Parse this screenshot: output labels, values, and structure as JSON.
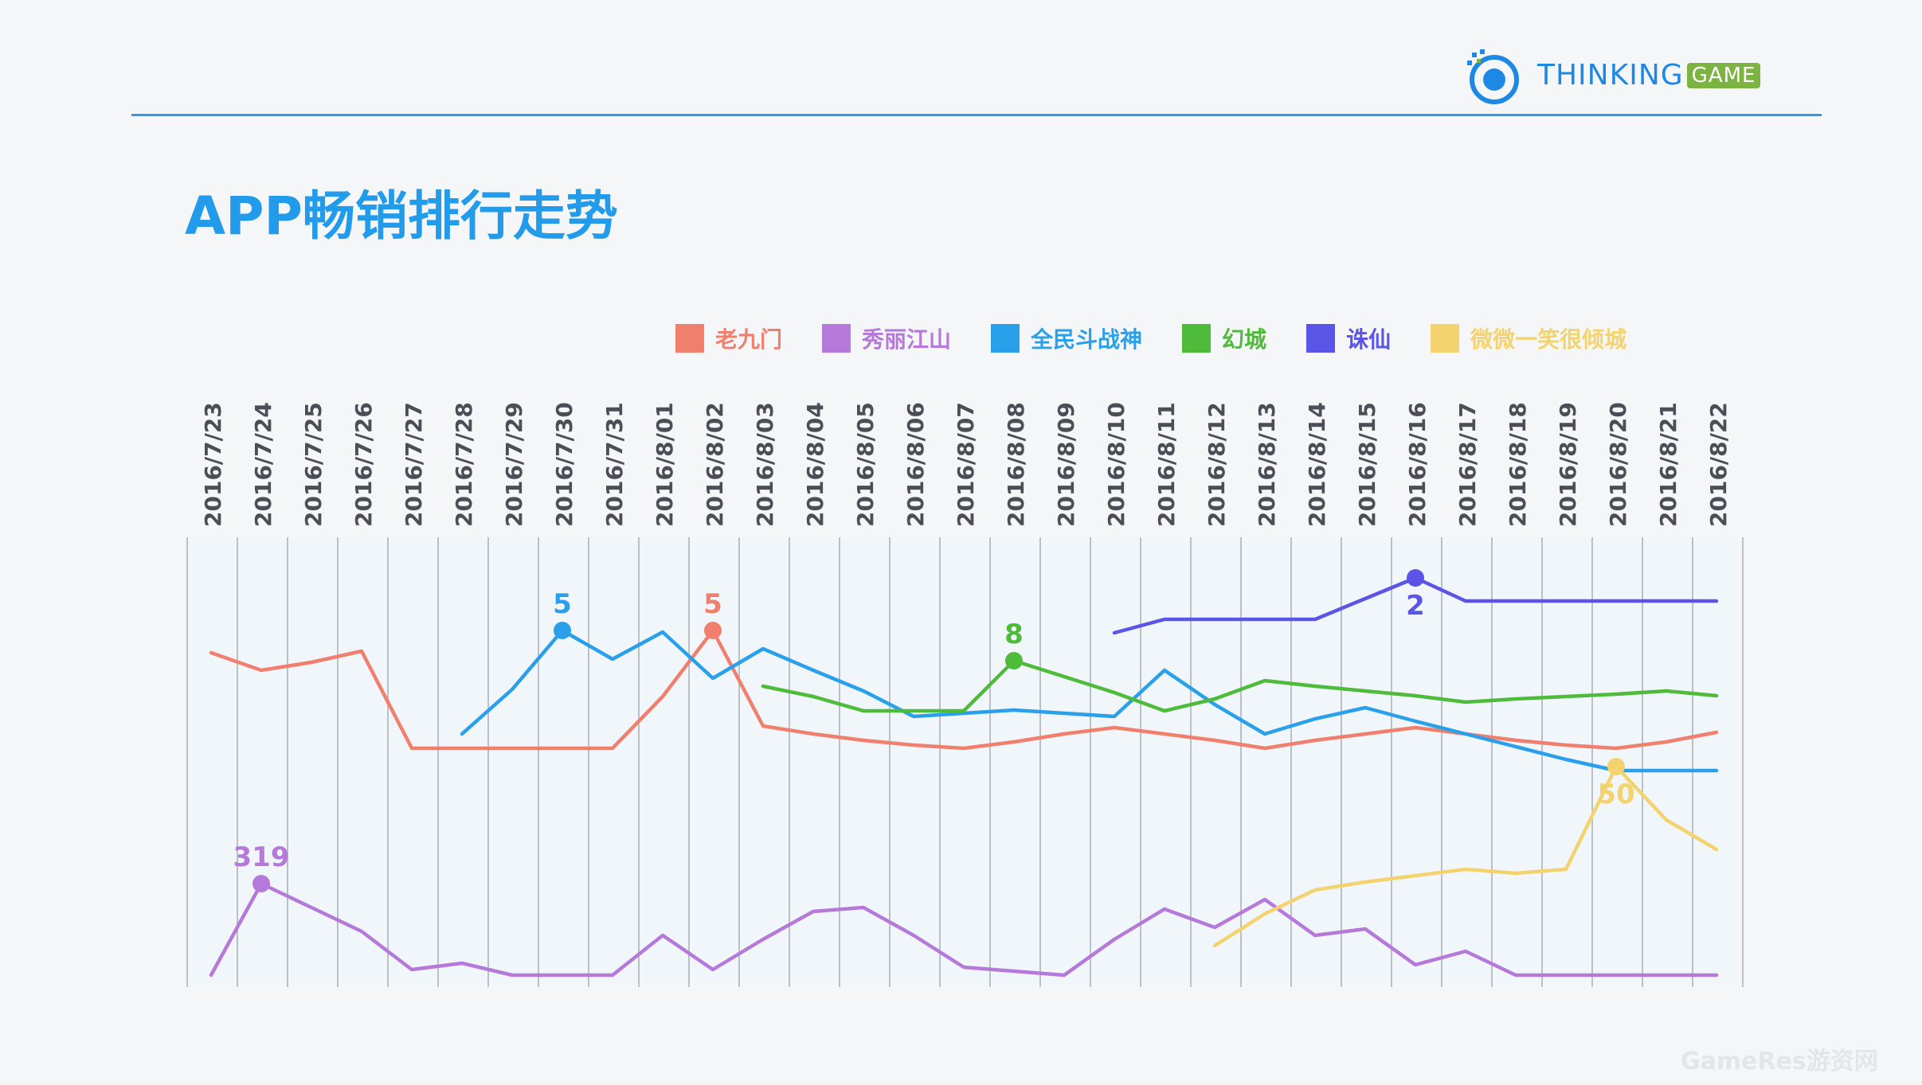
{
  "brand": {
    "name_part1": "THINKING",
    "name_part2": "GAME",
    "accent": "#1e88e5",
    "game_badge_color": "#7cb342"
  },
  "page": {
    "title": "APP畅销排行走势",
    "title_color": "#229bea"
  },
  "watermark": "GameRes游资网",
  "chart_data": {
    "type": "line",
    "title": "APP畅销排行走势",
    "xlabel": "",
    "ylabel": "",
    "x": [
      "2016/7/23",
      "2016/7/24",
      "2016/7/25",
      "2016/7/26",
      "2016/7/27",
      "2016/7/28",
      "2016/7/29",
      "2016/7/30",
      "2016/7/31",
      "2016/8/01",
      "2016/8/02",
      "2016/8/03",
      "2016/8/04",
      "2016/8/05",
      "2016/8/06",
      "2016/8/07",
      "2016/8/08",
      "2016/8/09",
      "2016/8/10",
      "2016/8/11",
      "2016/8/12",
      "2016/8/13",
      "2016/8/14",
      "2016/8/15",
      "2016/8/16",
      "2016/8/17",
      "2016/8/18",
      "2016/8/19",
      "2016/8/20",
      "2016/8/21",
      "2016/8/22"
    ],
    "y_axis": "rank (inverted, non-linear scale; only annotated values are printed)",
    "grid": true,
    "legend_position": "top-right",
    "series": [
      {
        "name": "老九门",
        "color": "#f07f6e",
        "values": [
          13,
          16,
          14,
          12,
          36,
          36,
          36,
          36,
          36,
          16,
          5,
          30,
          32,
          34,
          36,
          37,
          35,
          32,
          30,
          32,
          34,
          37,
          35,
          32,
          30,
          32,
          34,
          35,
          37,
          34,
          31
        ],
        "annotation": {
          "index": 10,
          "label": "5",
          "position": "above"
        }
      },
      {
        "name": "秀丽江山",
        "color": "#b57ad9",
        "values": [
          null,
          319,
          480,
          620,
          760,
          740,
          780,
          800,
          800,
          700,
          760,
          680,
          560,
          540,
          620,
          700,
          720,
          740,
          640,
          540,
          580,
          520,
          600,
          580,
          700,
          640,
          800,
          800,
          800,
          800,
          800
        ],
        "first_point_value": 800,
        "annotation": {
          "index": 1,
          "label": "319",
          "position": "above"
        }
      },
      {
        "name": "全民斗战神",
        "color": "#2ba0ea",
        "values": [
          null,
          null,
          null,
          null,
          null,
          31,
          12,
          5,
          9,
          6,
          11,
          8,
          12,
          16,
          20,
          20,
          19,
          20,
          20,
          11,
          19,
          28,
          24,
          22,
          26,
          30,
          36,
          40,
          45,
          45,
          45
        ],
        "annotation": {
          "index": 7,
          "label": "5",
          "position": "above"
        }
      },
      {
        "name": "幻城",
        "color": "#4fbb3a",
        "values": [
          null,
          null,
          null,
          null,
          null,
          null,
          null,
          null,
          null,
          null,
          null,
          12,
          15,
          18,
          18,
          18,
          8,
          12,
          14,
          16,
          13,
          11,
          12,
          12,
          13,
          14,
          13,
          13,
          12,
          12,
          12
        ],
        "annotation": {
          "index": 16,
          "label": "8",
          "position": "above"
        }
      },
      {
        "name": "诛仙",
        "color": "#5a55e6",
        "values": [
          null,
          null,
          null,
          null,
          null,
          null,
          null,
          null,
          null,
          null,
          null,
          null,
          null,
          null,
          null,
          null,
          null,
          null,
          4,
          3,
          3,
          3,
          3,
          3,
          2,
          3,
          3,
          3,
          3,
          3,
          3
        ],
        "annotation": {
          "index": 24,
          "label": "2",
          "position": "below"
        }
      },
      {
        "name": "微微一笑很倾城",
        "color": "#f4d36e",
        "values": [
          null,
          null,
          null,
          null,
          null,
          null,
          null,
          null,
          null,
          null,
          null,
          null,
          null,
          null,
          null,
          null,
          null,
          null,
          null,
          null,
          620,
          540,
          460,
          420,
          400,
          380,
          390,
          380,
          50,
          180,
          260
        ],
        "annotation": {
          "index": 28,
          "label": "50",
          "position": "below"
        }
      }
    ]
  }
}
